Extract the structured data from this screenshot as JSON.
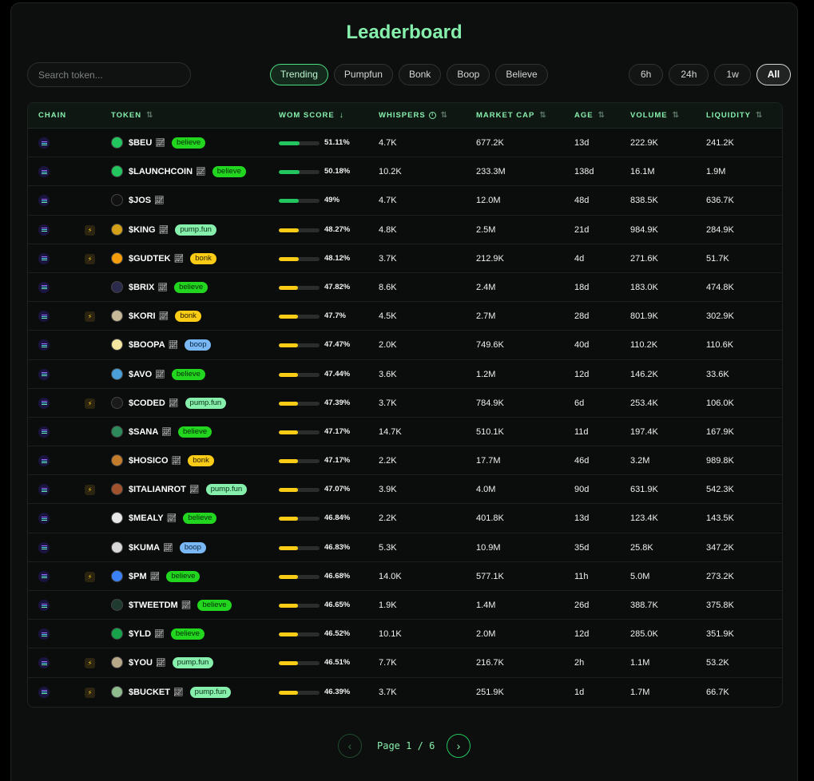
{
  "title": "Leaderboard",
  "search": {
    "placeholder": "Search token..."
  },
  "categories": [
    {
      "label": "Trending",
      "active": true
    },
    {
      "label": "Pumpfun",
      "active": false
    },
    {
      "label": "Bonk",
      "active": false
    },
    {
      "label": "Boop",
      "active": false
    },
    {
      "label": "Believe",
      "active": false
    }
  ],
  "timeframes": [
    {
      "label": "6h",
      "active": false
    },
    {
      "label": "24h",
      "active": false
    },
    {
      "label": "1w",
      "active": false
    },
    {
      "label": "All",
      "active": true
    }
  ],
  "columns": {
    "chain": "CHAIN",
    "token": "TOKEN",
    "wom_score": "WOM SCORE",
    "whispers": "WHISPERS",
    "market_cap": "MARKET CAP",
    "age": "AGE",
    "volume": "VOLUME",
    "liquidity": "LIQUIDITY"
  },
  "badge_colors": {
    "believe": "#22d61f",
    "pump.fun": "#86efac",
    "bonk": "#facc15",
    "boop": "#7ab8f5"
  },
  "score_colors": {
    "high": "#22c55e",
    "normal": "#facc15"
  },
  "rows": [
    {
      "token": "$BEU",
      "badge": "believe",
      "bolt": false,
      "wom": "51.11%",
      "wom_fraction": 0.5111,
      "whispers": "4.7K",
      "market_cap": "677.2K",
      "age": "13d",
      "volume": "222.9K",
      "liquidity": "241.2K",
      "avatar_color": "#22c55e"
    },
    {
      "token": "$LAUNCHCOIN",
      "badge": "believe",
      "bolt": false,
      "wom": "50.18%",
      "wom_fraction": 0.5018,
      "whispers": "10.2K",
      "market_cap": "233.3M",
      "age": "138d",
      "volume": "16.1M",
      "liquidity": "1.9M",
      "avatar_color": "#22c55e"
    },
    {
      "token": "$JOS",
      "badge": "",
      "bolt": false,
      "wom": "49%",
      "wom_fraction": 0.49,
      "whispers": "4.7K",
      "market_cap": "12.0M",
      "age": "48d",
      "volume": "838.5K",
      "liquidity": "636.7K",
      "avatar_color": "#111111"
    },
    {
      "token": "$KING",
      "badge": "pump.fun",
      "bolt": true,
      "wom": "48.27%",
      "wom_fraction": 0.4827,
      "whispers": "4.8K",
      "market_cap": "2.5M",
      "age": "21d",
      "volume": "984.9K",
      "liquidity": "284.9K",
      "avatar_color": "#d4a017"
    },
    {
      "token": "$GUDTEK",
      "badge": "bonk",
      "bolt": true,
      "wom": "48.12%",
      "wom_fraction": 0.4812,
      "whispers": "3.7K",
      "market_cap": "212.9K",
      "age": "4d",
      "volume": "271.6K",
      "liquidity": "51.7K",
      "avatar_color": "#f59e0b"
    },
    {
      "token": "$BRIX",
      "badge": "believe",
      "bolt": false,
      "wom": "47.82%",
      "wom_fraction": 0.4782,
      "whispers": "8.6K",
      "market_cap": "2.4M",
      "age": "18d",
      "volume": "183.0K",
      "liquidity": "474.8K",
      "avatar_color": "#2a2a4a"
    },
    {
      "token": "$KORI",
      "badge": "bonk",
      "bolt": true,
      "wom": "47.7%",
      "wom_fraction": 0.477,
      "whispers": "4.5K",
      "market_cap": "2.7M",
      "age": "28d",
      "volume": "801.9K",
      "liquidity": "302.9K",
      "avatar_color": "#c8b89a"
    },
    {
      "token": "$BOOPA",
      "badge": "boop",
      "bolt": false,
      "wom": "47.47%",
      "wom_fraction": 0.4747,
      "whispers": "2.0K",
      "market_cap": "749.6K",
      "age": "40d",
      "volume": "110.2K",
      "liquidity": "110.6K",
      "avatar_color": "#f2e6a0"
    },
    {
      "token": "$AVO",
      "badge": "believe",
      "bolt": false,
      "wom": "47.44%",
      "wom_fraction": 0.4744,
      "whispers": "3.6K",
      "market_cap": "1.2M",
      "age": "12d",
      "volume": "146.2K",
      "liquidity": "33.6K",
      "avatar_color": "#4a9fd8"
    },
    {
      "token": "$CODED",
      "badge": "pump.fun",
      "bolt": true,
      "wom": "47.39%",
      "wom_fraction": 0.4739,
      "whispers": "3.7K",
      "market_cap": "784.9K",
      "age": "6d",
      "volume": "253.4K",
      "liquidity": "106.0K",
      "avatar_color": "#1a1a1a"
    },
    {
      "token": "$SANA",
      "badge": "believe",
      "bolt": false,
      "wom": "47.17%",
      "wom_fraction": 0.4717,
      "whispers": "14.7K",
      "market_cap": "510.1K",
      "age": "11d",
      "volume": "197.4K",
      "liquidity": "167.9K",
      "avatar_color": "#2d8a5a"
    },
    {
      "token": "$HOSICO",
      "badge": "bonk",
      "bolt": false,
      "wom": "47.17%",
      "wom_fraction": 0.4717,
      "whispers": "2.2K",
      "market_cap": "17.7M",
      "age": "46d",
      "volume": "3.2M",
      "liquidity": "989.8K",
      "avatar_color": "#c27c2c"
    },
    {
      "token": "$ITALIANROT",
      "badge": "pump.fun",
      "bolt": true,
      "wom": "47.07%",
      "wom_fraction": 0.4707,
      "whispers": "3.9K",
      "market_cap": "4.0M",
      "age": "90d",
      "volume": "631.9K",
      "liquidity": "542.3K",
      "avatar_color": "#a0522d"
    },
    {
      "token": "$MEALY",
      "badge": "believe",
      "bolt": false,
      "wom": "46.84%",
      "wom_fraction": 0.4684,
      "whispers": "2.2K",
      "market_cap": "401.8K",
      "age": "13d",
      "volume": "123.4K",
      "liquidity": "143.5K",
      "avatar_color": "#e8e8e8"
    },
    {
      "token": "$KUMA",
      "badge": "boop",
      "bolt": false,
      "wom": "46.83%",
      "wom_fraction": 0.4683,
      "whispers": "5.3K",
      "market_cap": "10.9M",
      "age": "35d",
      "volume": "25.8K",
      "liquidity": "347.2K",
      "avatar_color": "#d9d9d9"
    },
    {
      "token": "$PM",
      "badge": "believe",
      "bolt": true,
      "wom": "46.68%",
      "wom_fraction": 0.4668,
      "whispers": "14.0K",
      "market_cap": "577.1K",
      "age": "11h",
      "volume": "5.0M",
      "liquidity": "273.2K",
      "avatar_color": "#3b82f6"
    },
    {
      "token": "$TWEETDM",
      "badge": "believe",
      "bolt": false,
      "wom": "46.65%",
      "wom_fraction": 0.4665,
      "whispers": "1.9K",
      "market_cap": "1.4M",
      "age": "26d",
      "volume": "388.7K",
      "liquidity": "375.8K",
      "avatar_color": "#1f3a2f"
    },
    {
      "token": "$YLD",
      "badge": "believe",
      "bolt": false,
      "wom": "46.52%",
      "wom_fraction": 0.4652,
      "whispers": "10.1K",
      "market_cap": "2.0M",
      "age": "12d",
      "volume": "285.0K",
      "liquidity": "351.9K",
      "avatar_color": "#16a34a"
    },
    {
      "token": "$YOU",
      "badge": "pump.fun",
      "bolt": true,
      "wom": "46.51%",
      "wom_fraction": 0.4651,
      "whispers": "7.7K",
      "market_cap": "216.7K",
      "age": "2h",
      "volume": "1.1M",
      "liquidity": "53.2K",
      "avatar_color": "#b8a88a"
    },
    {
      "token": "$BUCKET",
      "badge": "pump.fun",
      "bolt": true,
      "wom": "46.39%",
      "wom_fraction": 0.4639,
      "whispers": "3.7K",
      "market_cap": "251.9K",
      "age": "1d",
      "volume": "1.7M",
      "liquidity": "66.7K",
      "avatar_color": "#8fbc8f"
    }
  ],
  "pagination": {
    "page_word": "Page",
    "current": "1",
    "separator": "/",
    "total": "6"
  }
}
